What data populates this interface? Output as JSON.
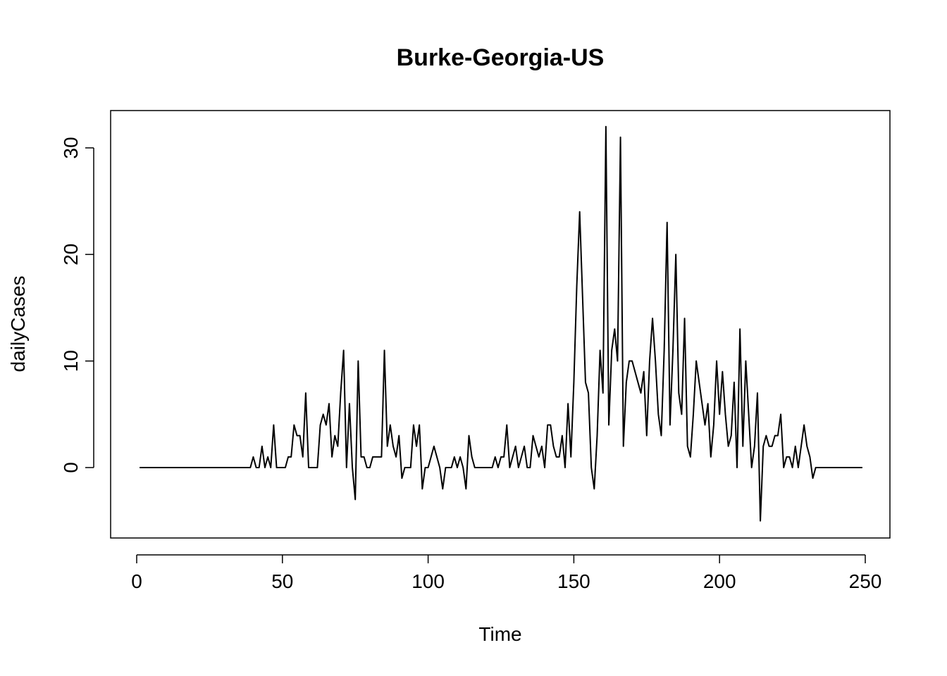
{
  "chart_data": {
    "type": "line",
    "title": "Burke-Georgia-US",
    "xlabel": "Time",
    "ylabel": "dailyCases",
    "xlim": [
      1,
      248
    ],
    "ylim": [
      -5,
      32
    ],
    "x_ticks": [
      0,
      50,
      100,
      150,
      200,
      250
    ],
    "y_ticks": [
      0,
      10,
      20,
      30
    ],
    "x_tick_labels": [
      "0",
      "50",
      "100",
      "150",
      "200",
      "250"
    ],
    "y_tick_labels": [
      "0",
      "10",
      "20",
      "30"
    ],
    "grid": false,
    "legend": "none",
    "line_color": "#000000",
    "series": [
      {
        "x_start": 1,
        "values": [
          0,
          0,
          0,
          0,
          0,
          0,
          0,
          0,
          0,
          0,
          0,
          0,
          0,
          0,
          0,
          0,
          0,
          0,
          0,
          0,
          0,
          0,
          0,
          0,
          0,
          0,
          0,
          0,
          0,
          0,
          0,
          0,
          0,
          0,
          0,
          0,
          0,
          0,
          0,
          1,
          0,
          0,
          2,
          0,
          1,
          0,
          4,
          0,
          0,
          0,
          0,
          1,
          1,
          4,
          3,
          3,
          1,
          7,
          0,
          0,
          0,
          0,
          4,
          5,
          4,
          6,
          1,
          3,
          2,
          7,
          11,
          0,
          6,
          0,
          -3,
          10,
          1,
          1,
          0,
          0,
          1,
          1,
          1,
          1,
          11,
          2,
          4,
          2,
          1,
          3,
          -1,
          0,
          0,
          0,
          4,
          2,
          4,
          -2,
          0,
          0,
          1,
          2,
          1,
          0,
          -2,
          0,
          0,
          0,
          1,
          0,
          1,
          0,
          -2,
          3,
          1,
          0,
          0,
          0,
          0,
          0,
          0,
          0,
          1,
          0,
          1,
          1,
          4,
          0,
          1,
          2,
          0,
          1,
          2,
          0,
          0,
          3,
          2,
          1,
          2,
          0,
          4,
          4,
          2,
          1,
          1,
          3,
          0,
          6,
          1,
          8,
          17,
          24,
          16,
          8,
          7,
          0,
          -2,
          3,
          11,
          7,
          32,
          4,
          11,
          13,
          10,
          31,
          2,
          8,
          10,
          10,
          9,
          8,
          7,
          9,
          3,
          10,
          14,
          10,
          5,
          3,
          11,
          23,
          4,
          11,
          20,
          7,
          5,
          14,
          2,
          1,
          5,
          10,
          8,
          6,
          4,
          6,
          1,
          4,
          10,
          5,
          9,
          5,
          2,
          3,
          8,
          0,
          13,
          2,
          10,
          5,
          0,
          2,
          7,
          -5,
          2,
          3,
          2,
          2,
          3,
          3,
          5,
          0,
          1,
          1,
          0,
          2,
          0,
          2,
          4,
          2,
          1,
          -1,
          0,
          0,
          0,
          0,
          0,
          0,
          0,
          0,
          0,
          0,
          0,
          0,
          0,
          0,
          0,
          0,
          0
        ]
      }
    ]
  }
}
